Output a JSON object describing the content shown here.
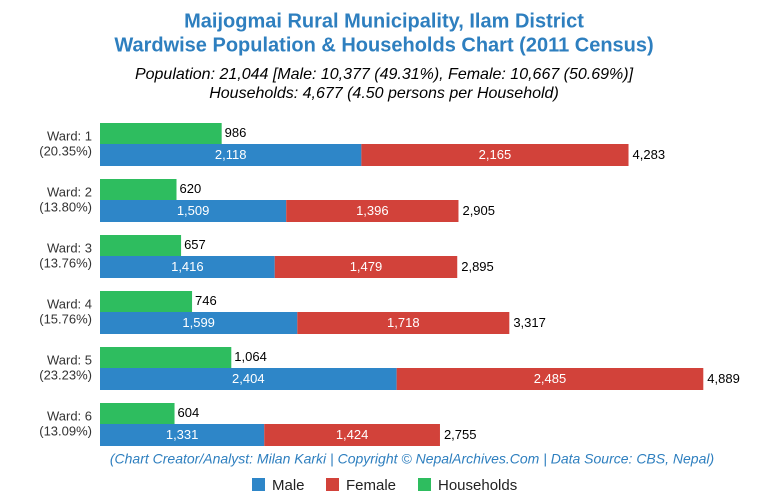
{
  "chart_data": {
    "type": "bar",
    "orientation": "horizontal",
    "title": [
      "Maijogmai Rural Municipality, Ilam District",
      "Wardwise Population & Households Chart (2011 Census)"
    ],
    "subtitle": [
      "Population: 21,044 [Male: 10,377 (49.31%), Female: 10,667 (50.69%)]",
      "Households: 4,677 (4.50 persons per Household)"
    ],
    "source_note": "(Chart Creator/Analyst: Milan Karki | Copyright © NepalArchives.Com | Data Source: CBS, Nepal)",
    "categories": [
      "Ward: 1",
      "Ward: 2",
      "Ward: 3",
      "Ward: 4",
      "Ward: 5",
      "Ward: 6"
    ],
    "category_shares": [
      "(20.35%)",
      "(13.80%)",
      "(13.76%)",
      "(15.76%)",
      "(23.23%)",
      "(13.09%)"
    ],
    "series": [
      {
        "name": "Male",
        "color": "#2e86c8",
        "stack": "population",
        "values": [
          2118,
          1509,
          1416,
          1599,
          2404,
          1331
        ],
        "value_labels": [
          "2,118",
          "1,509",
          "1,416",
          "1,599",
          "2,404",
          "1,331"
        ]
      },
      {
        "name": "Female",
        "color": "#d2423a",
        "stack": "population",
        "values": [
          2165,
          1396,
          1479,
          1718,
          2485,
          1424
        ],
        "value_labels": [
          "2,165",
          "1,396",
          "1,479",
          "1,718",
          "2,485",
          "1,424"
        ]
      },
      {
        "name": "Households",
        "color": "#2ebd5f",
        "stack": "households",
        "values": [
          986,
          620,
          657,
          746,
          1064,
          604
        ],
        "value_labels": [
          "986",
          "620",
          "657",
          "746",
          "1,064",
          "604"
        ]
      }
    ],
    "totals": {
      "values": [
        4283,
        2905,
        2895,
        3317,
        4889,
        2755
      ],
      "value_labels": [
        "4,283",
        "2,905",
        "2,895",
        "3,317",
        "4,889",
        "2,755"
      ]
    },
    "xlim": [
      0,
      5000
    ],
    "legend": "bottom"
  }
}
